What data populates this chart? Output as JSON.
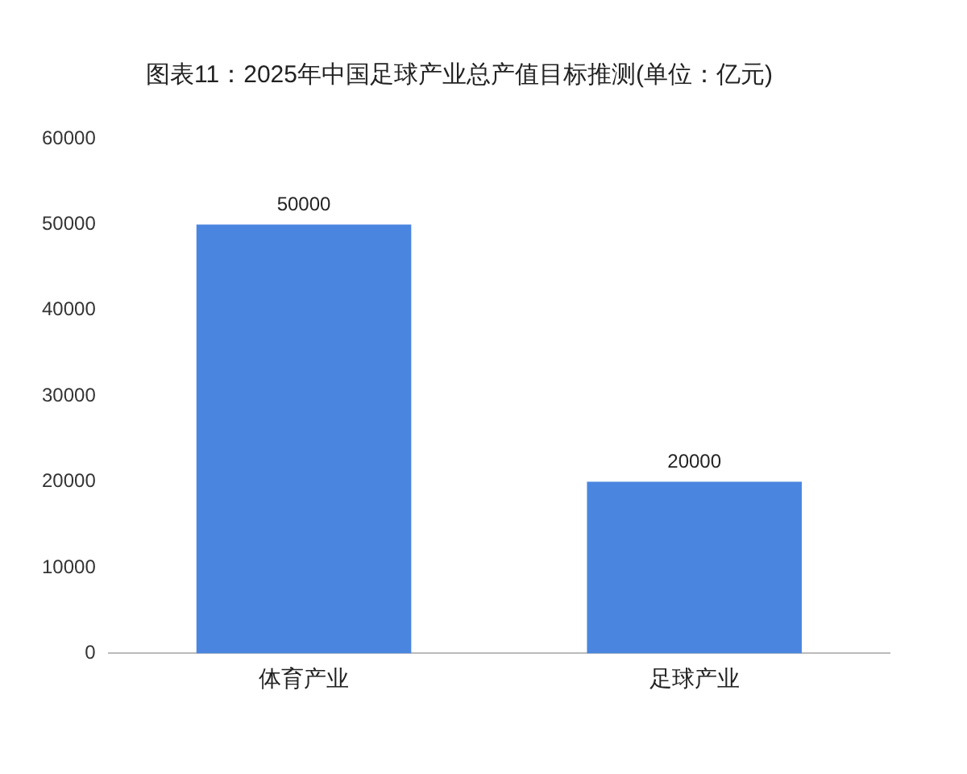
{
  "chart_data": {
    "type": "bar",
    "title": "图表11：2025年中国足球产业总产值目标推测(单位：亿元)",
    "categories": [
      "体育产业",
      "足球产业"
    ],
    "values": [
      50000,
      20000
    ],
    "color": "#4a86e0",
    "ylim": [
      0,
      60000
    ],
    "yticks": [
      0,
      10000,
      20000,
      30000,
      40000,
      50000,
      60000
    ],
    "grid": false,
    "data_labels": true,
    "legend": false
  }
}
